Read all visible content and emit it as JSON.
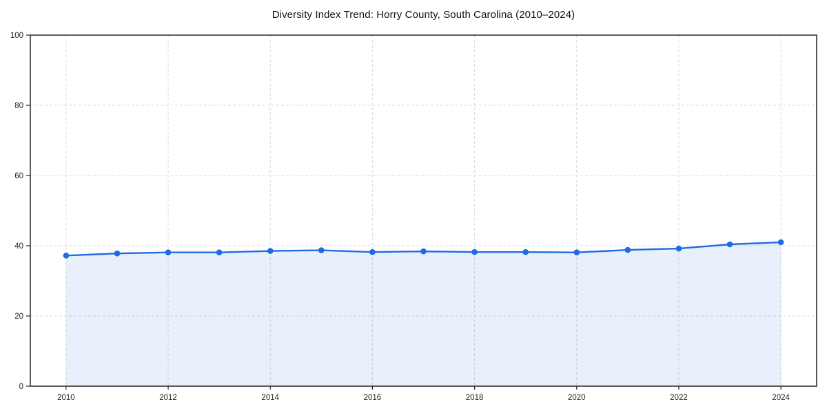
{
  "chart_data": {
    "type": "line",
    "title": "Diversity Index Trend: Horry County, South Carolina (2010–2024)",
    "xlabel": "",
    "ylabel": "",
    "x": [
      2010,
      2011,
      2012,
      2013,
      2014,
      2015,
      2016,
      2017,
      2018,
      2019,
      2020,
      2021,
      2022,
      2023,
      2024
    ],
    "series": [
      {
        "name": "Diversity Index",
        "values": [
          37.2,
          37.8,
          38.1,
          38.1,
          38.5,
          38.7,
          38.2,
          38.4,
          38.2,
          38.2,
          38.1,
          38.8,
          39.2,
          40.4,
          41.0
        ]
      }
    ],
    "xlim": [
      2009.3,
      2024.7
    ],
    "ylim": [
      0,
      100
    ],
    "xticks": [
      2010,
      2012,
      2014,
      2016,
      2018,
      2020,
      2022,
      2024
    ],
    "yticks": [
      0,
      20,
      40,
      60,
      80,
      100
    ],
    "grid": true,
    "grid_style": "dashed",
    "legend": false,
    "area_fill": true,
    "marker": "circle",
    "colors": {
      "line": "#1f6ce0",
      "marker": "#1f6ce0",
      "area_fill": "rgba(31,108,224,0.10)",
      "grid": "#dbdbdb",
      "spine": "#262626",
      "tick_label": "#262626",
      "title": "#111111",
      "background": "#ffffff"
    }
  }
}
